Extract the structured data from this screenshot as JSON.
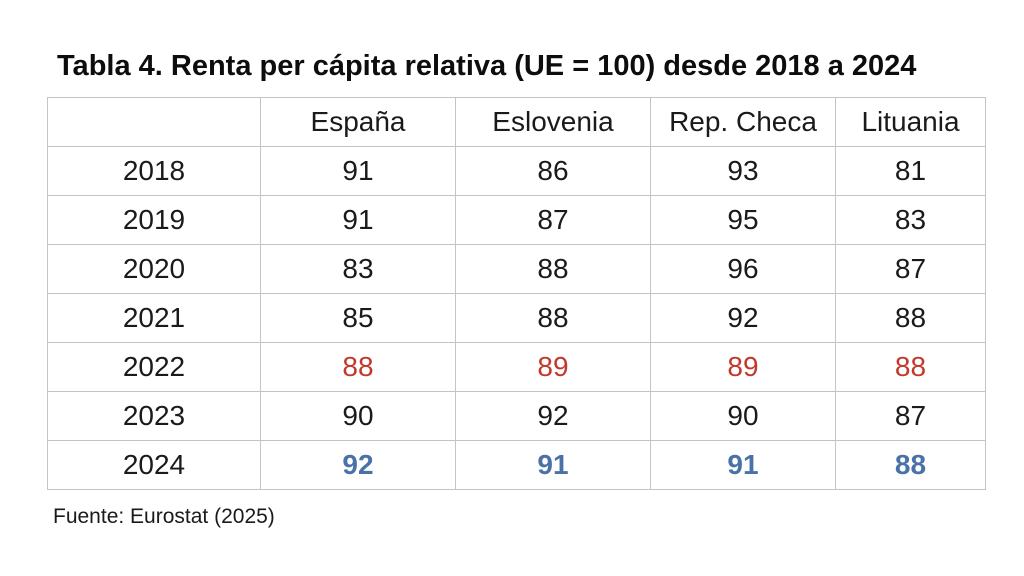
{
  "title": "Tabla 4. Renta per cápita relativa (UE = 100) desde 2018 a 2024",
  "source": "Fuente: Eurostat (2025)",
  "colors": {
    "highlight_red": "#c0392b",
    "highlight_blue": "#4a72a8",
    "border": "#c4c4c4",
    "text": "#1a1a1a"
  },
  "chart_data": {
    "type": "table",
    "title": "Tabla 4. Renta per cápita relativa (UE = 100) desde 2018 a 2024",
    "columns": [
      "",
      "España",
      "Eslovenia",
      "Rep. Checa",
      "Lituania"
    ],
    "rows": [
      {
        "year": "2018",
        "values": [
          "91",
          "86",
          "93",
          "81"
        ],
        "style": "normal"
      },
      {
        "year": "2019",
        "values": [
          "91",
          "87",
          "95",
          "83"
        ],
        "style": "normal"
      },
      {
        "year": "2020",
        "values": [
          "83",
          "88",
          "96",
          "87"
        ],
        "style": "normal"
      },
      {
        "year": "2021",
        "values": [
          "85",
          "88",
          "92",
          "88"
        ],
        "style": "normal"
      },
      {
        "year": "2022",
        "values": [
          "88",
          "89",
          "89",
          "88"
        ],
        "style": "red"
      },
      {
        "year": "2023",
        "values": [
          "90",
          "92",
          "90",
          "87"
        ],
        "style": "normal"
      },
      {
        "year": "2024",
        "values": [
          "92",
          "91",
          "91",
          "88"
        ],
        "style": "blue-bold"
      }
    ],
    "notes": {
      "red_row_meaning_visible_only_as_color": "2022 values shown in red",
      "blue_row_meaning_visible_only_as_color": "2024 values shown in bold blue"
    },
    "source": "Fuente: Eurostat (2025)",
    "layout": {
      "grid": "full light-gray grid",
      "legend": "none"
    }
  }
}
